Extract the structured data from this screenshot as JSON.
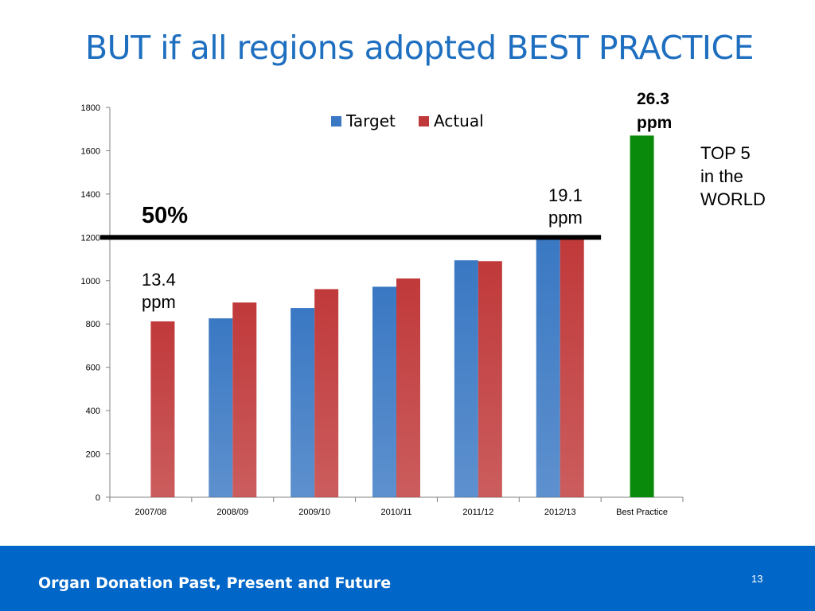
{
  "slide": {
    "title": "BUT if all regions adopted BEST PRACTICE",
    "footer_text": "Organ Donation Past, Present and Future",
    "page_number": "13"
  },
  "annotations": {
    "fifty_percent": "50%",
    "start_rate_line1": "13.4",
    "start_rate_line2": "ppm",
    "current_rate_line1": "19.1",
    "current_rate_line2": "ppm",
    "best_rate_line1": "26.3",
    "best_rate_line2": "ppm",
    "top5_line1": "TOP 5",
    "top5_line2": "in the",
    "top5_line3": "WORLD"
  },
  "chart_data": {
    "type": "bar",
    "categories": [
      "2007/08",
      "2008/09",
      "2009/10",
      "2010/11",
      "2011/12",
      "2012/13",
      "Best Practice"
    ],
    "series": [
      {
        "name": "Target",
        "color": "#3a78c3",
        "values": [
          null,
          826,
          874,
          972,
          1094,
          1200,
          null
        ]
      },
      {
        "name": "Actual",
        "color": "#c0393a",
        "values": [
          812,
          899,
          961,
          1010,
          1090,
          1200,
          null
        ]
      },
      {
        "name": "",
        "color": "#0a8a0a",
        "values": [
          null,
          null,
          null,
          null,
          null,
          null,
          1670
        ]
      }
    ],
    "reference_line": {
      "value": 1200,
      "from_category": "2007/08",
      "to_category": "2012/13",
      "color": "#000000"
    },
    "yticks": [
      0,
      200,
      400,
      600,
      800,
      1000,
      1200,
      1400,
      1600,
      1800
    ],
    "ylim": [
      0,
      1800
    ],
    "legend": {
      "position": "top-center",
      "entries": [
        "Target",
        "Actual"
      ]
    },
    "grid": false,
    "xlabel": "",
    "ylabel": ""
  }
}
